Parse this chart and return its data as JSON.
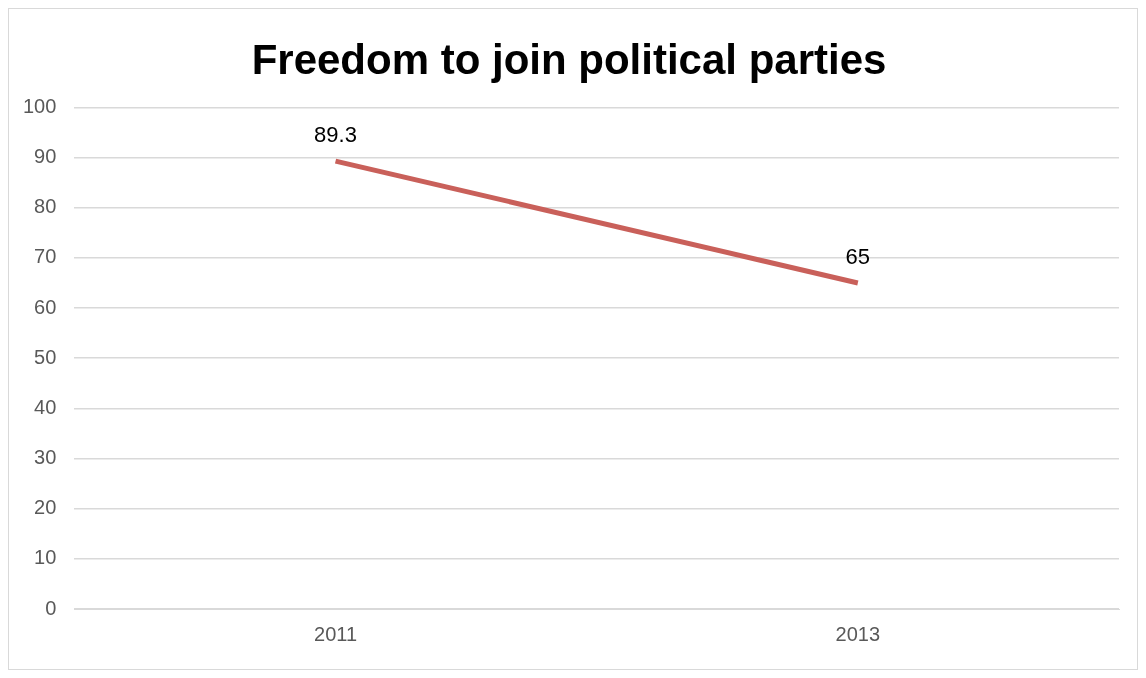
{
  "chart_data": {
    "type": "line",
    "title": "Freedom to join political parties",
    "categories": [
      "2011",
      "2013"
    ],
    "series": [
      {
        "color": "#c9605a",
        "values": [
          89.3,
          65
        ]
      }
    ],
    "ylim": [
      0,
      100
    ],
    "yticks": [
      0,
      10,
      20,
      30,
      40,
      50,
      60,
      70,
      80,
      90,
      100
    ],
    "grid": "y",
    "legend": false,
    "marker": "none",
    "line_style": "solid",
    "data_labels": true
  }
}
